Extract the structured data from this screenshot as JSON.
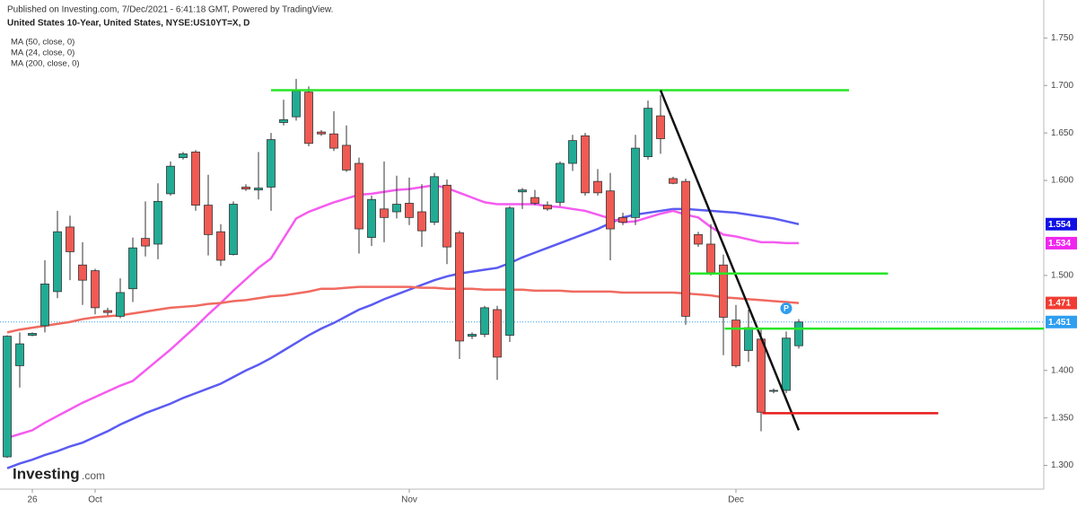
{
  "header": {
    "publisher_line": "Published on Investing.com, 7/Dec/2021 - 6:41:18 GMT, Powered by TradingView."
  },
  "watermark": {
    "name": "Investing",
    "suffix": ".com"
  },
  "chart_data": {
    "type": "candlestick",
    "title": "United States 10-Year, United States, NYSE:US10YT=X, D",
    "categories": [
      null,
      null,
      "26",
      null,
      null,
      null,
      null,
      "Oct",
      null,
      null,
      null,
      null,
      null,
      null,
      null,
      null,
      null,
      null,
      null,
      null,
      null,
      null,
      null,
      null,
      null,
      null,
      null,
      null,
      null,
      null,
      null,
      null,
      "Nov",
      null,
      null,
      null,
      null,
      null,
      null,
      null,
      null,
      null,
      null,
      null,
      null,
      null,
      null,
      null,
      null,
      null,
      null,
      null,
      null,
      null,
      null,
      null,
      null,
      null,
      "Dec",
      null,
      null,
      null,
      null,
      null
    ],
    "open": [
      1.309,
      1.405,
      1.437,
      1.447,
      1.483,
      1.551,
      1.511,
      1.505,
      1.463,
      1.457,
      1.486,
      1.539,
      1.533,
      1.586,
      1.624,
      1.63,
      1.574,
      1.546,
      1.522,
      1.593,
      1.59,
      1.593,
      1.661,
      1.667,
      1.693,
      1.651,
      1.649,
      1.637,
      1.618,
      1.54,
      1.57,
      1.567,
      1.576,
      1.567,
      1.556,
      1.595,
      1.545,
      1.436,
      1.438,
      1.464,
      1.437,
      1.588,
      1.582,
      1.574,
      1.577,
      1.618,
      1.647,
      1.599,
      1.589,
      1.561,
      1.561,
      1.625,
      1.668,
      1.602,
      1.599,
      1.543,
      1.533,
      1.511,
      1.453,
      1.421,
      1.433,
      1.378,
      1.379,
      1.426
    ],
    "high": [
      1.437,
      1.44,
      1.44,
      1.516,
      1.568,
      1.563,
      1.535,
      1.507,
      1.466,
      1.497,
      1.54,
      1.578,
      1.597,
      1.62,
      1.63,
      1.632,
      1.606,
      1.554,
      1.578,
      1.596,
      1.63,
      1.65,
      1.685,
      1.707,
      1.699,
      1.653,
      1.673,
      1.658,
      1.624,
      1.584,
      1.62,
      1.605,
      1.603,
      1.596,
      1.608,
      1.601,
      1.547,
      1.44,
      1.468,
      1.468,
      1.573,
      1.592,
      1.59,
      1.578,
      1.62,
      1.648,
      1.65,
      1.612,
      1.608,
      1.566,
      1.648,
      1.684,
      1.69,
      1.604,
      1.602,
      1.546,
      1.554,
      1.522,
      1.469,
      1.464,
      1.445,
      1.381,
      1.441,
      1.454
    ],
    "low": [
      1.308,
      1.382,
      1.436,
      1.44,
      1.476,
      1.495,
      1.469,
      1.459,
      1.458,
      1.455,
      1.472,
      1.52,
      1.517,
      1.584,
      1.622,
      1.568,
      1.521,
      1.51,
      1.521,
      1.589,
      1.58,
      1.568,
      1.658,
      1.663,
      1.636,
      1.647,
      1.631,
      1.609,
      1.523,
      1.531,
      1.535,
      1.56,
      1.553,
      1.53,
      1.553,
      1.512,
      1.412,
      1.433,
      1.435,
      1.39,
      1.43,
      1.57,
      1.574,
      1.568,
      1.573,
      1.61,
      1.584,
      1.584,
      1.516,
      1.553,
      1.553,
      1.622,
      1.628,
      1.596,
      1.448,
      1.53,
      1.5,
      1.416,
      1.403,
      1.409,
      1.336,
      1.376,
      1.376,
      1.423
    ],
    "close": [
      1.436,
      1.428,
      1.439,
      1.491,
      1.546,
      1.525,
      1.495,
      1.466,
      1.461,
      1.482,
      1.529,
      1.531,
      1.578,
      1.615,
      1.628,
      1.574,
      1.543,
      1.516,
      1.575,
      1.591,
      1.592,
      1.643,
      1.664,
      1.694,
      1.639,
      1.649,
      1.634,
      1.611,
      1.549,
      1.58,
      1.561,
      1.575,
      1.561,
      1.547,
      1.604,
      1.53,
      1.431,
      1.438,
      1.466,
      1.414,
      1.571,
      1.59,
      1.576,
      1.57,
      1.618,
      1.642,
      1.587,
      1.587,
      1.549,
      1.556,
      1.634,
      1.676,
      1.644,
      1.597,
      1.457,
      1.533,
      1.503,
      1.456,
      1.405,
      1.445,
      1.356,
      1.379,
      1.434,
      1.451
    ],
    "up_color": "#22ab94",
    "down_color": "#f05a53",
    "series": [
      {
        "name": "MA (50, close, 0)",
        "color": "#5b5bf2",
        "label_color": "#1010e6",
        "values": [
          1.297,
          1.302,
          1.306,
          1.311,
          1.315,
          1.32,
          1.324,
          1.33,
          1.336,
          1.343,
          1.349,
          1.355,
          1.36,
          1.365,
          1.371,
          1.376,
          1.381,
          1.386,
          1.393,
          1.4,
          1.406,
          1.413,
          1.421,
          1.429,
          1.437,
          1.444,
          1.45,
          1.457,
          1.464,
          1.469,
          1.475,
          1.48,
          1.485,
          1.49,
          1.495,
          1.499,
          1.502,
          1.504,
          1.506,
          1.508,
          1.513,
          1.519,
          1.524,
          1.529,
          1.534,
          1.539,
          1.544,
          1.549,
          1.555,
          1.561,
          1.564,
          1.566,
          1.568,
          1.57,
          1.57,
          1.569,
          1.568,
          1.567,
          1.566,
          1.564,
          1.562,
          1.56,
          1.557,
          1.554
        ]
      },
      {
        "name": "MA (24, close, 0)",
        "color": "#f55bf0",
        "label_color": "#f025f0",
        "values": [
          1.329,
          1.333,
          1.337,
          1.345,
          1.352,
          1.359,
          1.366,
          1.372,
          1.378,
          1.384,
          1.389,
          1.4,
          1.411,
          1.422,
          1.434,
          1.446,
          1.459,
          1.471,
          1.484,
          1.496,
          1.508,
          1.518,
          1.539,
          1.56,
          1.567,
          1.572,
          1.577,
          1.581,
          1.585,
          1.586,
          1.588,
          1.59,
          1.591,
          1.593,
          1.595,
          1.592,
          1.587,
          1.582,
          1.577,
          1.575,
          1.575,
          1.575,
          1.575,
          1.573,
          1.572,
          1.57,
          1.568,
          1.564,
          1.56,
          1.556,
          1.557,
          1.561,
          1.565,
          1.568,
          1.564,
          1.561,
          1.551,
          1.543,
          1.541,
          1.538,
          1.535,
          1.535,
          1.534,
          1.534
        ]
      },
      {
        "name": "MA (200, close, 0)",
        "color": "#f06a60",
        "label_color": "#f03c32",
        "values": [
          1.44,
          1.443,
          1.445,
          1.447,
          1.449,
          1.451,
          1.454,
          1.456,
          1.457,
          1.458,
          1.46,
          1.462,
          1.464,
          1.466,
          1.467,
          1.468,
          1.47,
          1.471,
          1.473,
          1.474,
          1.476,
          1.478,
          1.479,
          1.481,
          1.483,
          1.486,
          1.486,
          1.487,
          1.488,
          1.488,
          1.488,
          1.488,
          1.488,
          1.487,
          1.487,
          1.486,
          1.486,
          1.486,
          1.485,
          1.485,
          1.485,
          1.485,
          1.484,
          1.484,
          1.484,
          1.483,
          1.483,
          1.483,
          1.483,
          1.482,
          1.482,
          1.482,
          1.482,
          1.482,
          1.481,
          1.48,
          1.479,
          1.477,
          1.476,
          1.475,
          1.474,
          1.473,
          1.472,
          1.471
        ]
      }
    ],
    "last_price_color": "#2e9ef0",
    "marker": "P",
    "trendlines": [
      {
        "color": "#27e627",
        "from": [
          21,
          1.695
        ],
        "to": [
          67,
          1.695
        ]
      },
      {
        "color": "#111111",
        "from": [
          52,
          1.695
        ],
        "to": [
          63,
          1.337
        ]
      },
      {
        "color": "#27e627",
        "from": [
          54.3,
          1.502
        ],
        "to": [
          70.1,
          1.502
        ]
      },
      {
        "color": "#27e627",
        "from": [
          57.1,
          1.444
        ],
        "to": [
          82.5,
          1.444
        ]
      },
      {
        "color": "#e61b1b",
        "from": [
          60.1,
          1.355
        ],
        "to": [
          74.1,
          1.355
        ]
      }
    ],
    "ylim": [
      1.275,
      1.79
    ],
    "yticks": [
      {
        "value": 1.75,
        "label": "1.750"
      },
      {
        "value": 1.7,
        "label": "1.700"
      },
      {
        "value": 1.65,
        "label": "1.650"
      },
      {
        "value": 1.6,
        "label": "1.600"
      },
      {
        "value": 1.5,
        "label": "1.500"
      },
      {
        "value": 1.4,
        "label": "1.400"
      },
      {
        "value": 1.35,
        "label": "1.350"
      },
      {
        "value": 1.3,
        "label": "1.300"
      }
    ]
  }
}
